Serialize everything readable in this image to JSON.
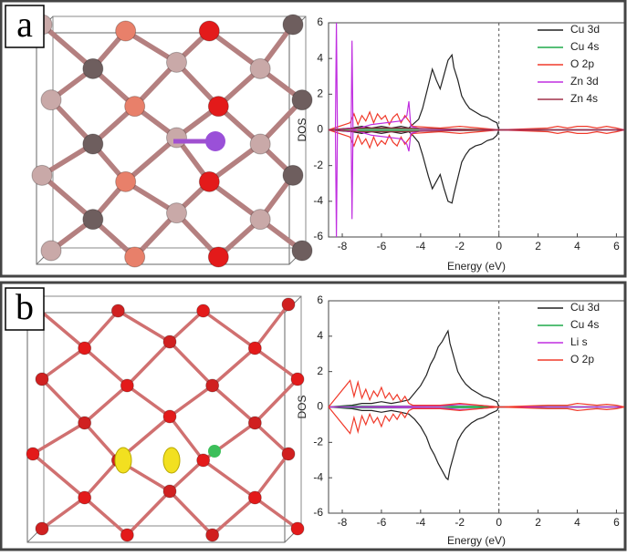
{
  "panels": [
    {
      "label": "a"
    },
    {
      "label": "b"
    }
  ],
  "chart_data": [
    {
      "type": "line",
      "x_label": "Energy (eV)",
      "y_label": "DOS",
      "legend": "upper right",
      "grid": false,
      "vline": 0,
      "xlim": [
        -8.7,
        6.4
      ],
      "ylim": [
        -6,
        6
      ],
      "xticks": [
        -8,
        -6,
        -4,
        -2,
        0,
        2,
        4,
        6
      ],
      "yticks": [
        -6,
        -4,
        -2,
        0,
        2,
        4,
        6
      ],
      "series": [
        {
          "name": "Cu 3d",
          "color": "#222222",
          "x": [
            -8.7,
            -7.5,
            -7,
            -6.5,
            -6,
            -5.5,
            -5,
            -4.6,
            -4.4,
            -4.1,
            -3.9,
            -3.6,
            -3.4,
            -3.2,
            -3,
            -2.8,
            -2.6,
            -2.4,
            -2.3,
            -2.1,
            -1.9,
            -1.7,
            -1.5,
            -1.2,
            -0.9,
            -0.6,
            -0.3,
            -0.1,
            0,
            1,
            3,
            6.4
          ],
          "values": [
            0,
            0.1,
            0.2,
            0.1,
            0.2,
            0.1,
            0.2,
            0.1,
            0.3,
            0.6,
            1.2,
            2.5,
            3.4,
            2.8,
            2.3,
            3.1,
            3.9,
            4.2,
            3.5,
            2.8,
            1.9,
            1.5,
            1.2,
            1.0,
            0.8,
            0.7,
            0.5,
            0.4,
            0,
            0,
            0,
            0
          ],
          "values_down": [
            0,
            -0.1,
            -0.2,
            -0.1,
            -0.2,
            -0.1,
            -0.2,
            -0.1,
            -0.3,
            -0.7,
            -1.4,
            -2.6,
            -3.3,
            -2.9,
            -2.5,
            -3.3,
            -4.0,
            -4.1,
            -3.6,
            -2.7,
            -1.8,
            -1.4,
            -1.1,
            -0.9,
            -0.8,
            -0.6,
            -0.5,
            -0.3,
            0,
            0,
            0,
            0
          ]
        },
        {
          "name": "Cu 4s",
          "color": "#1faa4a",
          "x": [
            -8.7,
            -7.5,
            -4.5,
            -3,
            0,
            3,
            6.4
          ],
          "values": [
            0,
            0.05,
            0.05,
            0.05,
            0.02,
            0.02,
            0
          ],
          "values_down": [
            0,
            -0.05,
            -0.05,
            -0.05,
            -0.02,
            -0.02,
            0
          ]
        },
        {
          "name": "O 2p",
          "color": "#f03a2a",
          "x": [
            -8.7,
            -7.6,
            -7.4,
            -7.2,
            -7,
            -6.8,
            -6.6,
            -6.4,
            -6.2,
            -6,
            -5.8,
            -5.6,
            -5.4,
            -5.2,
            -5,
            -4.8,
            -4.6,
            -4.4,
            -3,
            -2,
            -1,
            0,
            2.5,
            3,
            3.5,
            4,
            4.5,
            5,
            5.5,
            6,
            6.4
          ],
          "values": [
            0,
            0.4,
            0.9,
            0.3,
            0.8,
            0.5,
            1.0,
            0.4,
            0.9,
            0.6,
            0.8,
            0.3,
            0.7,
            0.9,
            0.4,
            0.8,
            0.5,
            0.2,
            0.1,
            0.2,
            0.1,
            0,
            0.1,
            0.2,
            0.1,
            0.2,
            0.2,
            0.1,
            0.2,
            0.1,
            0
          ],
          "values_down": [
            0,
            -0.4,
            -0.9,
            -0.3,
            -0.8,
            -0.5,
            -1.0,
            -0.4,
            -0.9,
            -0.6,
            -0.8,
            -0.3,
            -0.7,
            -0.9,
            -0.4,
            -0.8,
            -0.5,
            -0.2,
            -0.1,
            -0.2,
            -0.1,
            0,
            -0.1,
            -0.2,
            -0.1,
            -0.2,
            -0.2,
            -0.1,
            -0.2,
            -0.1,
            0
          ]
        },
        {
          "name": "Zn 3d",
          "color": "#c02ee0",
          "x": [
            -8.7,
            -8.35,
            -8.3,
            -8.25,
            -7.6,
            -7.55,
            -7.5,
            -7.45,
            -6.5,
            -5,
            -4.7,
            -4.6,
            -4.5,
            -4,
            0,
            6.4
          ],
          "values": [
            0,
            0,
            6,
            0,
            0.1,
            0,
            5,
            0,
            0.3,
            0.5,
            0.8,
            1.6,
            0.2,
            0.05,
            0,
            0
          ],
          "values_down": [
            0,
            0,
            -6,
            0,
            -0.1,
            0,
            -5,
            0,
            -0.3,
            -0.5,
            -0.8,
            -1.2,
            -0.2,
            -0.05,
            0,
            0
          ]
        },
        {
          "name": "Zn 4s",
          "color": "#a0304a",
          "x": [
            -8.7,
            -7,
            -5,
            -3,
            0,
            6.4
          ],
          "values": [
            0,
            0.1,
            0.1,
            0.05,
            0,
            0
          ],
          "values_down": [
            0,
            -0.1,
            -0.1,
            -0.05,
            0,
            0
          ]
        }
      ]
    },
    {
      "type": "line",
      "x_label": "Energy (eV)",
      "y_label": "DOS",
      "legend": "upper right",
      "grid": false,
      "vline": 0,
      "xlim": [
        -8.7,
        6.4
      ],
      "ylim": [
        -6,
        6
      ],
      "xticks": [
        -8,
        -6,
        -4,
        -2,
        0,
        2,
        4,
        6
      ],
      "yticks": [
        -6,
        -4,
        -2,
        0,
        2,
        4,
        6
      ],
      "series": [
        {
          "name": "Cu 3d",
          "color": "#222222",
          "x": [
            -8.7,
            -7.5,
            -7,
            -6.5,
            -6,
            -5.5,
            -5,
            -4.6,
            -4.3,
            -4,
            -3.7,
            -3.5,
            -3.3,
            -3.1,
            -2.9,
            -2.7,
            -2.6,
            -2.5,
            -2.3,
            -2.1,
            -1.9,
            -1.7,
            -1.4,
            -1.1,
            -0.8,
            -0.5,
            -0.3,
            -0.1,
            0,
            6.4
          ],
          "values": [
            0,
            0.1,
            0.2,
            0.2,
            0.3,
            0.2,
            0.3,
            0.4,
            0.8,
            1.2,
            1.8,
            2.4,
            2.8,
            3.4,
            3.7,
            4.1,
            4.3,
            3.6,
            2.8,
            2.0,
            1.6,
            1.3,
            1.0,
            0.8,
            0.6,
            0.5,
            0.4,
            0.3,
            0,
            0
          ],
          "values_down": [
            0,
            -0.1,
            -0.2,
            -0.2,
            -0.3,
            -0.2,
            -0.3,
            -0.4,
            -0.7,
            -1.1,
            -1.7,
            -2.3,
            -2.7,
            -3.2,
            -3.6,
            -4.0,
            -4.1,
            -3.5,
            -2.7,
            -1.9,
            -1.5,
            -1.2,
            -0.9,
            -0.7,
            -0.6,
            -0.4,
            -0.3,
            -0.2,
            0,
            0
          ]
        },
        {
          "name": "Cu 4s",
          "color": "#1faa4a",
          "x": [
            -8.7,
            -7.5,
            -4.5,
            -3,
            0,
            3,
            6.4
          ],
          "values": [
            0,
            0.05,
            0.05,
            0.05,
            0.02,
            0.02,
            0
          ],
          "values_down": [
            0,
            -0.05,
            -0.05,
            -0.05,
            -0.02,
            -0.02,
            0
          ]
        },
        {
          "name": "Li s",
          "color": "#c02ee0",
          "x": [
            -8.7,
            -3,
            -2,
            -1,
            0,
            6.4
          ],
          "values": [
            0,
            0.05,
            0.15,
            0.1,
            0,
            0
          ],
          "values_down": [
            0,
            -0.05,
            -0.15,
            -0.1,
            0,
            0
          ]
        },
        {
          "name": "O 2p",
          "color": "#f03a2a",
          "x": [
            -8.7,
            -7.6,
            -7.4,
            -7.2,
            -7,
            -6.8,
            -6.6,
            -6.4,
            -6.2,
            -6,
            -5.8,
            -5.6,
            -5.4,
            -5.2,
            -5,
            -4.8,
            -4.6,
            -4.4,
            -3,
            -2,
            -1,
            0,
            2.5,
            3,
            3.5,
            4,
            4.5,
            5,
            5.5,
            6,
            6.4
          ],
          "values": [
            0,
            1.5,
            0.6,
            1.4,
            0.5,
            1.0,
            0.4,
            0.9,
            0.6,
            1.1,
            0.5,
            0.8,
            0.4,
            0.7,
            0.3,
            0.6,
            0.2,
            0.1,
            0.1,
            0.2,
            0.1,
            0,
            0.1,
            0.1,
            0.1,
            0.2,
            0.15,
            0.1,
            0.15,
            0.1,
            0
          ],
          "values_down": [
            0,
            -1.5,
            -0.6,
            -1.4,
            -0.5,
            -1.0,
            -0.4,
            -0.9,
            -0.6,
            -1.1,
            -0.5,
            -0.8,
            -0.4,
            -0.7,
            -0.3,
            -0.6,
            -0.2,
            -0.1,
            -0.1,
            -0.2,
            -0.1,
            0,
            -0.1,
            -0.1,
            -0.1,
            -0.2,
            -0.15,
            -0.1,
            -0.15,
            -0.1,
            0
          ]
        }
      ]
    }
  ]
}
